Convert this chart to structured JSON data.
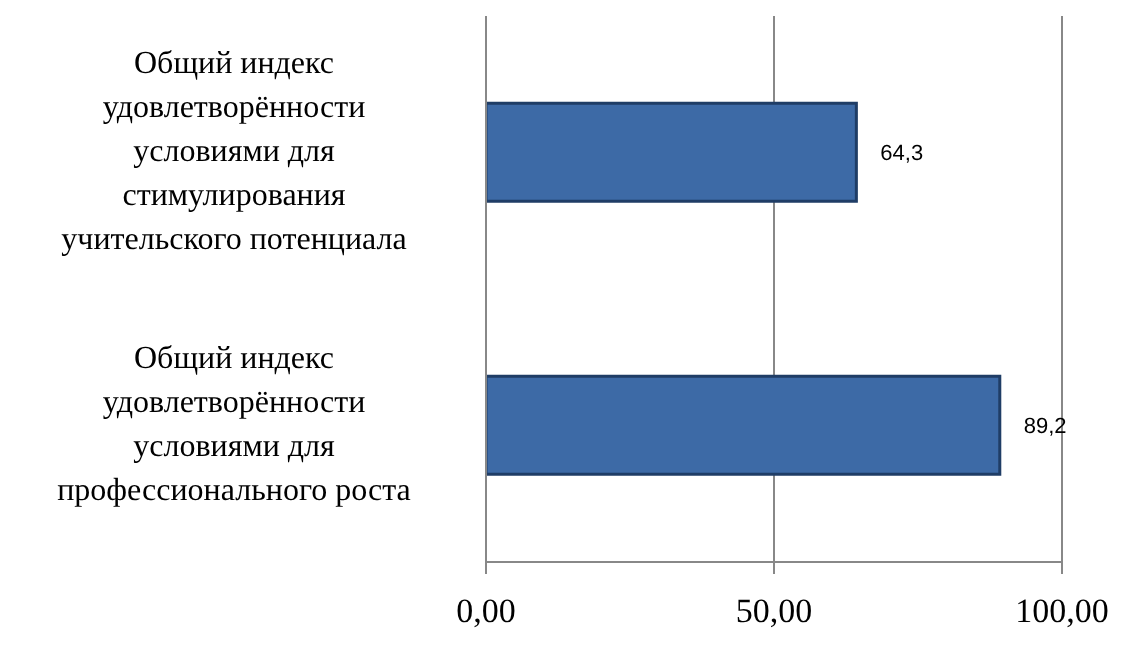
{
  "chart_data": {
    "type": "bar",
    "orientation": "horizontal",
    "categories": [
      "Общий индекс удовлетворённости условиями для стимулирования учительского потенциала",
      "Общий индекс удовлетворённости условиями для профессионального роста"
    ],
    "values": [
      64.3,
      89.2
    ],
    "value_labels": [
      "64,3",
      "89,2"
    ],
    "color": "#3d6aa6",
    "xlim": [
      0,
      100
    ],
    "xticks": [
      {
        "value": 0,
        "label": "0,00"
      },
      {
        "value": 50,
        "label": "50,00"
      },
      {
        "value": 100,
        "label": "100,00"
      }
    ],
    "grid": "x"
  }
}
